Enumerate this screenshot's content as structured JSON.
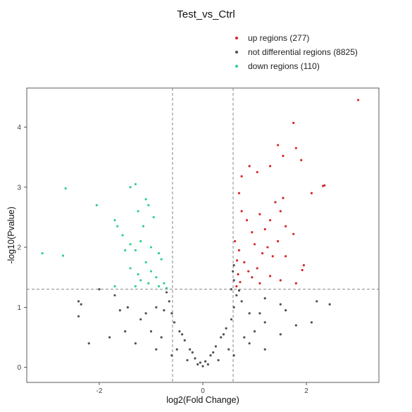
{
  "chart_data": {
    "type": "scatter",
    "title": "Test_vs_Ctrl",
    "xlabel": "log2(Fold Change)",
    "ylabel": "-log10(Pvalue)",
    "xlim": [
      -3.4,
      3.4
    ],
    "ylim": [
      -0.25,
      4.65
    ],
    "x_ticks": [
      -2,
      0,
      2
    ],
    "x_tick_labels": [
      "-2",
      "0",
      "2"
    ],
    "y_ticks": [
      0,
      1,
      2,
      3,
      4
    ],
    "y_tick_labels": [
      "0",
      "1",
      "2",
      "3",
      "4"
    ],
    "grid": false,
    "legend_position": "top-right",
    "thresholds": {
      "fold_change_x": [
        -0.585,
        0.585
      ],
      "pvalue_y": 1.301
    },
    "series": [
      {
        "name": "up  regions (277)",
        "color": "#d62728",
        "points": [
          [
            3.0,
            4.45
          ],
          [
            1.75,
            4.07
          ],
          [
            1.45,
            3.7
          ],
          [
            1.8,
            3.65
          ],
          [
            1.55,
            3.52
          ],
          [
            1.9,
            3.45
          ],
          [
            1.3,
            3.35
          ],
          [
            2.35,
            3.03
          ],
          [
            2.32,
            3.02
          ],
          [
            2.1,
            2.9
          ],
          [
            1.05,
            3.25
          ],
          [
            0.75,
            3.18
          ],
          [
            0.9,
            3.35
          ],
          [
            1.4,
            2.75
          ],
          [
            1.55,
            2.82
          ],
          [
            1.6,
            2.35
          ],
          [
            1.3,
            2.45
          ],
          [
            1.5,
            2.6
          ],
          [
            1.1,
            2.55
          ],
          [
            1.2,
            2.3
          ],
          [
            1.45,
            2.1
          ],
          [
            1.75,
            2.22
          ],
          [
            1.6,
            1.85
          ],
          [
            1.95,
            1.7
          ],
          [
            1.92,
            1.62
          ],
          [
            1.8,
            1.4
          ],
          [
            1.5,
            1.45
          ],
          [
            1.3,
            1.52
          ],
          [
            0.7,
            2.9
          ],
          [
            0.75,
            2.6
          ],
          [
            0.85,
            2.45
          ],
          [
            0.95,
            2.25
          ],
          [
            1.0,
            2.05
          ],
          [
            0.7,
            1.95
          ],
          [
            0.68,
            1.55
          ],
          [
            0.8,
            1.75
          ],
          [
            1.15,
            1.9
          ],
          [
            1.25,
            2.0
          ],
          [
            1.35,
            1.85
          ],
          [
            0.95,
            1.5
          ],
          [
            1.05,
            1.65
          ],
          [
            1.1,
            1.4
          ],
          [
            0.65,
            1.35
          ],
          [
            0.72,
            1.42
          ],
          [
            0.88,
            1.6
          ],
          [
            0.62,
            2.1
          ],
          [
            0.66,
            1.78
          ]
        ]
      },
      {
        "name": "not differential regions (8825)",
        "color": "#505050",
        "points": [
          [
            0,
            0.02
          ],
          [
            -0.05,
            0.08
          ],
          [
            0.05,
            0.1
          ],
          [
            -0.15,
            0.15
          ],
          [
            0.15,
            0.2
          ],
          [
            -0.25,
            0.3
          ],
          [
            0.25,
            0.35
          ],
          [
            -0.35,
            0.45
          ],
          [
            0.35,
            0.5
          ],
          [
            -0.45,
            0.6
          ],
          [
            0.45,
            0.65
          ],
          [
            -0.55,
            0.75
          ],
          [
            0.55,
            0.8
          ],
          [
            -0.6,
            0.9
          ],
          [
            0.6,
            1.0
          ],
          [
            -0.65,
            1.1
          ],
          [
            0.65,
            1.2
          ],
          [
            -0.7,
            1.25
          ],
          [
            0.7,
            1.28
          ],
          [
            -0.9,
            1.0
          ],
          [
            -1.2,
            0.8
          ],
          [
            -1.5,
            0.6
          ],
          [
            -1.8,
            0.5
          ],
          [
            -2.2,
            0.4
          ],
          [
            -2.0,
            1.3
          ],
          [
            -2.4,
            0.85
          ],
          [
            -2.35,
            1.05
          ],
          [
            -2.4,
            1.1
          ],
          [
            -1.7,
            1.2
          ],
          [
            -1.45,
            1.0
          ],
          [
            -1.3,
            0.4
          ],
          [
            -0.9,
            0.3
          ],
          [
            -0.6,
            0.2
          ],
          [
            0.9,
            0.9
          ],
          [
            1.2,
            0.75
          ],
          [
            1.5,
            0.55
          ],
          [
            1.8,
            0.7
          ],
          [
            2.1,
            0.75
          ],
          [
            2.45,
            1.05
          ],
          [
            2.2,
            1.1
          ],
          [
            1.5,
            1.05
          ],
          [
            1.2,
            1.15
          ],
          [
            0.9,
            0.4
          ],
          [
            0.6,
            0.2
          ],
          [
            1.2,
            0.3
          ],
          [
            0.4,
            0.55
          ],
          [
            -0.4,
            0.55
          ],
          [
            0.2,
            0.25
          ],
          [
            -0.2,
            0.25
          ],
          [
            0.75,
            1.1
          ],
          [
            -0.75,
            0.95
          ],
          [
            1.0,
            0.6
          ],
          [
            -1.0,
            0.6
          ],
          [
            1.6,
            0.95
          ],
          [
            -1.6,
            0.95
          ],
          [
            0.1,
            0.05
          ],
          [
            -0.1,
            0.05
          ],
          [
            0.3,
            0.12
          ],
          [
            -0.3,
            0.12
          ],
          [
            0.5,
            0.3
          ],
          [
            -0.5,
            0.3
          ],
          [
            0.8,
            0.5
          ],
          [
            -0.8,
            0.5
          ],
          [
            1.1,
            0.9
          ],
          [
            -1.1,
            0.9
          ],
          [
            0.55,
            1.3
          ],
          [
            0.6,
            1.45
          ],
          [
            0.58,
            1.6
          ],
          [
            0.6,
            1.7
          ]
        ]
      },
      {
        "name": "down regions (110)",
        "color": "#2fd08a",
        "points": [
          [
            -2.65,
            2.98
          ],
          [
            -1.4,
            3.0
          ],
          [
            -1.3,
            3.05
          ],
          [
            -2.05,
            2.7
          ],
          [
            -1.1,
            2.8
          ],
          [
            -1.05,
            2.7
          ],
          [
            -1.25,
            2.6
          ],
          [
            -0.95,
            2.5
          ],
          [
            -1.15,
            2.35
          ],
          [
            -1.7,
            2.45
          ],
          [
            -1.65,
            2.35
          ],
          [
            -1.55,
            2.2
          ],
          [
            -1.4,
            2.05
          ],
          [
            -1.2,
            2.1
          ],
          [
            -1.0,
            2.0
          ],
          [
            -0.85,
            1.9
          ],
          [
            -1.3,
            1.95
          ],
          [
            -1.5,
            1.95
          ],
          [
            -0.8,
            1.8
          ],
          [
            -1.1,
            1.75
          ],
          [
            -1.0,
            1.6
          ],
          [
            -0.9,
            1.5
          ],
          [
            -1.25,
            1.55
          ],
          [
            -1.4,
            1.65
          ],
          [
            -1.2,
            1.45
          ],
          [
            -0.75,
            1.4
          ],
          [
            -0.85,
            1.35
          ],
          [
            -1.05,
            1.4
          ],
          [
            -0.7,
            1.32
          ],
          [
            -1.3,
            1.35
          ],
          [
            -3.1,
            1.9
          ],
          [
            -2.7,
            1.86
          ],
          [
            -1.7,
            1.35
          ]
        ]
      }
    ]
  }
}
